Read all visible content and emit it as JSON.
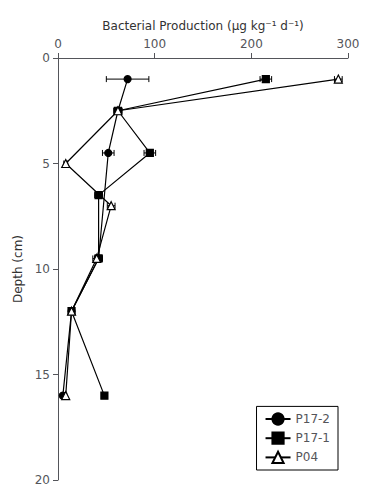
{
  "chart_data": {
    "type": "line",
    "xlabel": "Bacterial Production (μg kg⁻¹ d⁻¹)",
    "ylabel": "Depth (cm)",
    "xlim": [
      0,
      300
    ],
    "ylim": [
      20,
      0
    ],
    "xticks": [
      0,
      100,
      200,
      300
    ],
    "yticks": [
      0,
      5,
      10,
      15,
      20
    ],
    "grid": false,
    "legend": "lower right",
    "series": [
      {
        "name": "P17-2",
        "color": "#000000",
        "marker": "circle",
        "line_style": "solid",
        "x": [
          72,
          62,
          52,
          42,
          14,
          5
        ],
        "y": [
          1.0,
          2.5,
          4.5,
          9.5,
          12.0,
          16.0
        ],
        "xerr": [
          22,
          4,
          6,
          4,
          3,
          1
        ]
      },
      {
        "name": "P17-1",
        "color": "#000000",
        "marker": "square",
        "line_style": "solid",
        "x": [
          215,
          62,
          95,
          42,
          42,
          14,
          48
        ],
        "y": [
          1.0,
          2.5,
          4.5,
          6.5,
          9.5,
          12.0,
          16.0
        ],
        "xerr": [
          6,
          4,
          6,
          4,
          4,
          2,
          3
        ]
      },
      {
        "name": "P04",
        "color": "#000000",
        "marker": "triangle_open",
        "line_style": "solid",
        "x": [
          290,
          62,
          8,
          55,
          40,
          14,
          8
        ],
        "y": [
          1.0,
          2.5,
          5.0,
          7.0,
          9.5,
          12.0,
          16.0
        ],
        "xerr": [
          4,
          4,
          2,
          4,
          4,
          2,
          1
        ]
      }
    ]
  }
}
